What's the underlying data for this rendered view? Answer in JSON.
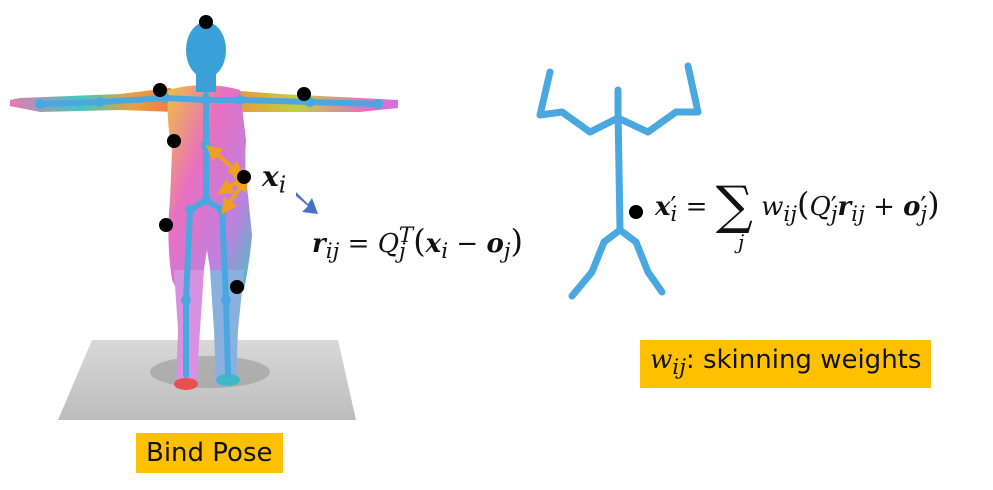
{
  "figure": {
    "left_panel": {
      "caption": "Bind Pose",
      "point_label_var": "x",
      "point_label_sub": "i",
      "offset_equation": {
        "lhs_var": "r",
        "lhs_sub": "ij",
        "eq": "=",
        "rot_var": "Q",
        "rot_sub": "j",
        "rot_sup": "T",
        "x_var": "x",
        "x_sub": "i",
        "minus": "−",
        "o_var": "o",
        "o_sub": "j"
      }
    },
    "right_panel": {
      "blend_equation": {
        "lhs_var": "x",
        "lhs_prime": "′",
        "lhs_sub": "i",
        "eq": "=",
        "sum_symbol": "∑",
        "sum_index": "j",
        "w_var": "w",
        "w_sub": "ij",
        "q_var": "Q",
        "q_prime": "′",
        "q_sub": "j",
        "r_var": "r",
        "r_sub": "ij",
        "plus": "+",
        "o_var": "o",
        "o_prime": "′",
        "o_sub": "j"
      },
      "weights_legend": {
        "symbol": "w",
        "symbol_sub": "ij",
        "text": ": skinning weights"
      }
    },
    "colors": {
      "skeleton": "#4aa8e0",
      "label_bg": "#ffc000",
      "point": "#000000",
      "arrow_orange": "#f0a020",
      "arrow_blue": "#4472c4"
    }
  }
}
